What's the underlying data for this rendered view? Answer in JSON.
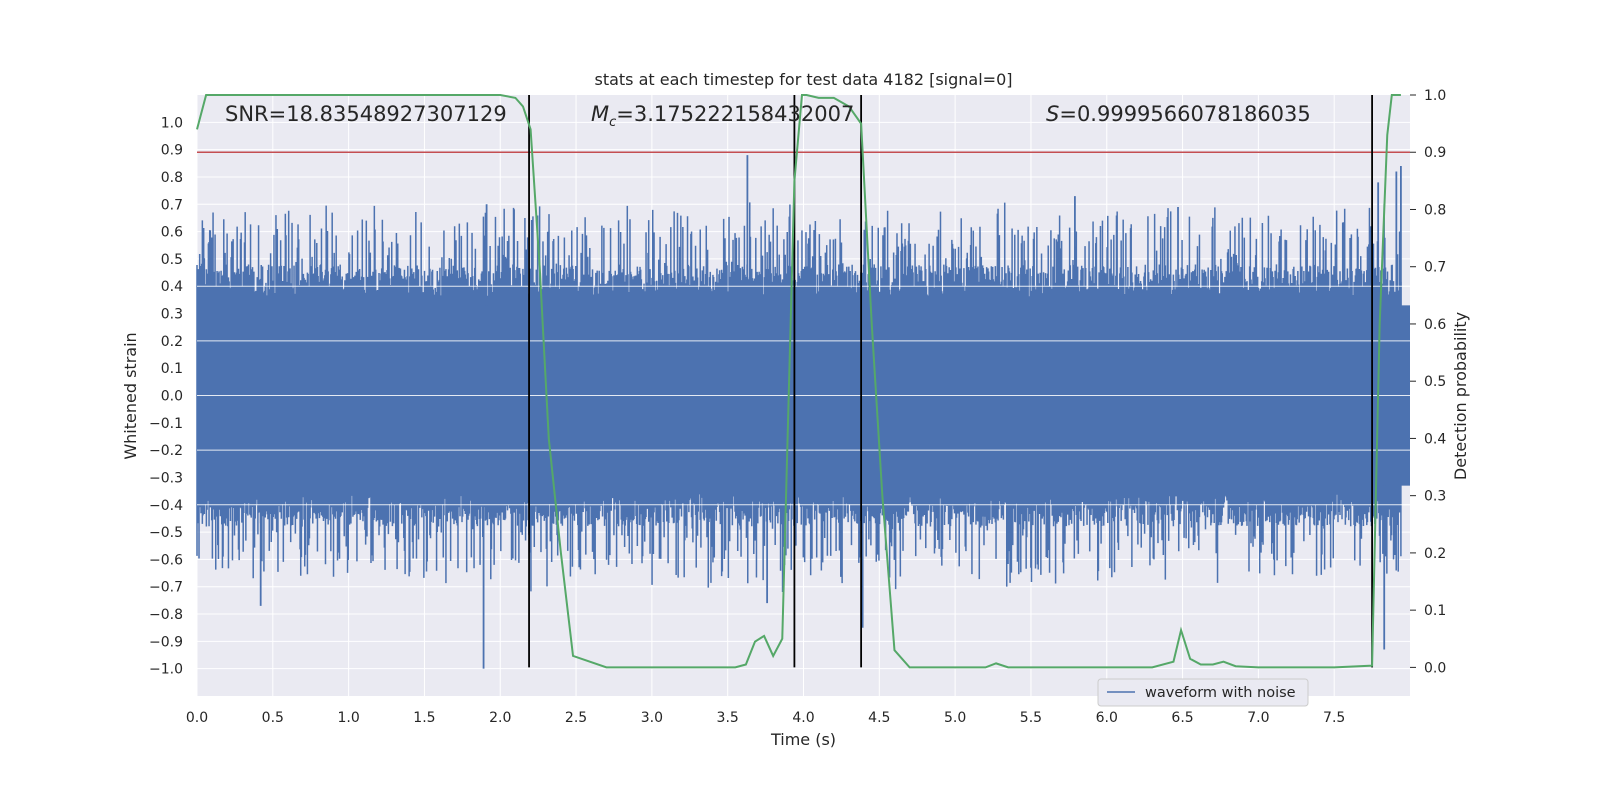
{
  "chart_data": {
    "type": "line",
    "title": "stats at each timestep for test data 4182 [signal=0]",
    "xlabel": "Time (s)",
    "ylabel": "Whitened strain",
    "y2label": "Detection probability",
    "xlim": [
      0.0,
      8.0
    ],
    "ylim": [
      -1.1,
      1.1
    ],
    "y2lim": [
      -0.05,
      1.0
    ],
    "xticks": [
      "0.0",
      "0.5",
      "1.0",
      "1.5",
      "2.0",
      "2.5",
      "3.0",
      "3.5",
      "4.0",
      "4.5",
      "5.0",
      "5.5",
      "6.0",
      "6.5",
      "7.0",
      "7.5"
    ],
    "xtick_values": [
      0.0,
      0.5,
      1.0,
      1.5,
      2.0,
      2.5,
      3.0,
      3.5,
      4.0,
      4.5,
      5.0,
      5.5,
      6.0,
      6.5,
      7.0,
      7.5
    ],
    "yticks": [
      "1.0",
      "0.9",
      "0.8",
      "0.7",
      "0.6",
      "0.5",
      "0.4",
      "0.3",
      "0.2",
      "0.1",
      "0.0",
      "−0.1",
      "−0.2",
      "−0.3",
      "−0.4",
      "−0.5",
      "−0.6",
      "−0.7",
      "−0.8",
      "−0.9",
      "−1.0"
    ],
    "ytick_values": [
      1.0,
      0.9,
      0.8,
      0.7,
      0.6,
      0.5,
      0.4,
      0.3,
      0.2,
      0.1,
      0.0,
      -0.1,
      -0.2,
      -0.3,
      -0.4,
      -0.5,
      -0.6,
      -0.7,
      -0.8,
      -0.9,
      -1.0
    ],
    "y2ticks": [
      "1.0",
      "0.9",
      "0.8",
      "0.7",
      "0.6",
      "0.5",
      "0.4",
      "0.3",
      "0.2",
      "0.1",
      "0.0"
    ],
    "y2tick_values": [
      1.0,
      0.9,
      0.8,
      0.7,
      0.6,
      0.5,
      0.4,
      0.3,
      0.2,
      0.1,
      0.0
    ],
    "annotations": {
      "snr": "SNR=18.83548927307129",
      "mc_symbol": "M",
      "mc_sub": "c",
      "mc_value": "=3.175222158432007",
      "s_symbol": "S",
      "s_value": "=0.9999566078186035"
    },
    "threshold": 0.9,
    "boundaries": [
      2.19,
      3.94,
      4.38,
      7.75
    ],
    "legend": [
      "waveform with noise"
    ],
    "legend_location": "lower-right",
    "series": [
      {
        "name": "waveform with noise",
        "axis": "left",
        "envelope_note": "dense noise; bulk within about ±0.4, spikes listed below",
        "spikes": [
          [
            0.42,
            -0.77
          ],
          [
            1.89,
            -1.0
          ],
          [
            1.91,
            0.7
          ],
          [
            3.63,
            0.88
          ],
          [
            3.76,
            -0.76
          ],
          [
            4.39,
            -0.85
          ],
          [
            5.79,
            0.73
          ],
          [
            6.47,
            0.69
          ],
          [
            7.79,
            0.78
          ],
          [
            7.83,
            -0.93
          ],
          [
            7.91,
            0.82
          ],
          [
            7.94,
            0.84
          ]
        ],
        "color": "#4c72b0"
      },
      {
        "name": "detection probability",
        "axis": "right",
        "x": [
          0.0,
          0.06,
          0.3,
          1.0,
          1.5,
          2.0,
          2.1,
          2.15,
          2.2,
          2.26,
          2.32,
          2.4,
          2.48,
          2.7,
          3.0,
          3.3,
          3.55,
          3.62,
          3.68,
          3.74,
          3.8,
          3.86,
          3.9,
          3.94,
          3.99,
          4.02,
          4.1,
          4.2,
          4.3,
          4.38,
          4.45,
          4.52,
          4.6,
          4.7,
          4.9,
          5.2,
          5.27,
          5.35,
          5.6,
          6.0,
          6.3,
          6.44,
          6.49,
          6.55,
          6.62,
          6.7,
          6.77,
          6.85,
          7.0,
          7.5,
          7.75,
          7.8,
          7.85,
          7.88,
          7.94
        ],
        "y": [
          0.94,
          1.0,
          1.0,
          1.0,
          1.0,
          1.0,
          0.995,
          0.98,
          0.94,
          0.7,
          0.4,
          0.2,
          0.02,
          0.0,
          0.0,
          0.0,
          0.0,
          0.005,
          0.045,
          0.055,
          0.02,
          0.05,
          0.45,
          0.85,
          1.0,
          1.0,
          0.995,
          0.995,
          0.98,
          0.95,
          0.6,
          0.3,
          0.03,
          0.0,
          0.0,
          0.0,
          0.007,
          0.0,
          0.0,
          0.0,
          0.0,
          0.01,
          0.065,
          0.015,
          0.005,
          0.005,
          0.01,
          0.002,
          0.0,
          0.0,
          0.003,
          0.6,
          0.93,
          1.0,
          1.0
        ],
        "color": "#55a868"
      }
    ]
  }
}
